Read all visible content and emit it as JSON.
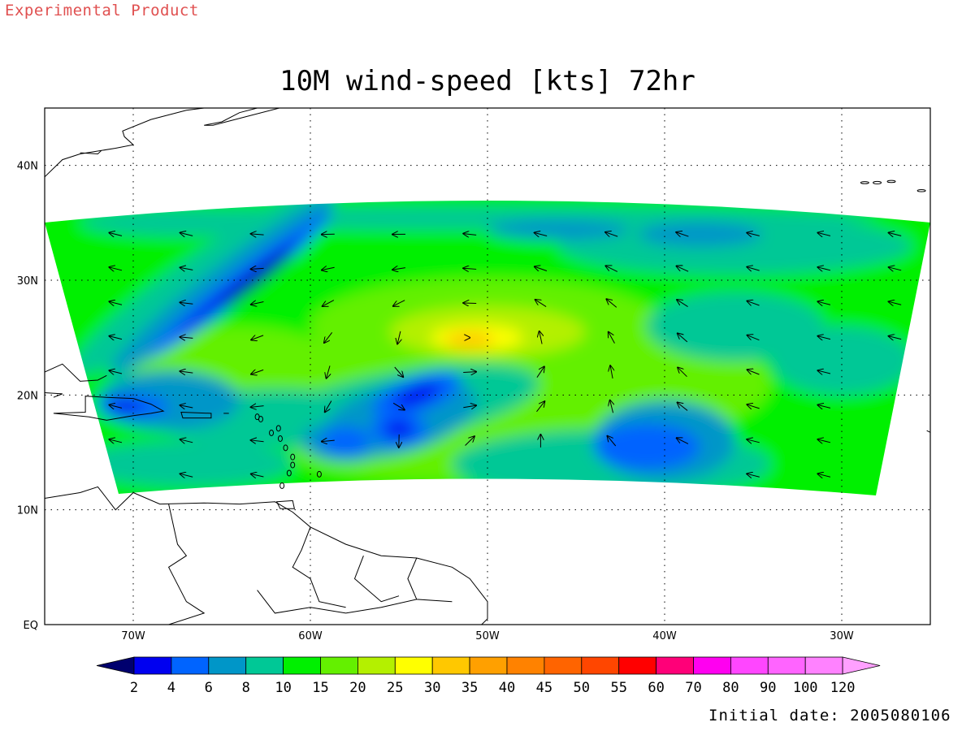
{
  "header": {
    "label": "Experimental Product"
  },
  "title": "10M wind-speed [kts] 72hr",
  "footer": {
    "initial_date": "Initial date: 2005080106"
  },
  "axes": {
    "lon_labels": [
      "70W",
      "60W",
      "50W",
      "40W",
      "30W"
    ],
    "lat_labels": [
      "40N",
      "30N",
      "20N",
      "10N",
      "EQ"
    ]
  },
  "colorbar": {
    "labels": [
      "2",
      "4",
      "6",
      "8",
      "10",
      "15",
      "20",
      "25",
      "30",
      "35",
      "40",
      "45",
      "50",
      "55",
      "60",
      "70",
      "80",
      "90",
      "100",
      "120"
    ],
    "colors": [
      "#00006e",
      "#0000f0",
      "#0064ff",
      "#0096c8",
      "#00c896",
      "#00f000",
      "#64f000",
      "#b4f000",
      "#ffff00",
      "#ffc800",
      "#ffa000",
      "#ff8200",
      "#ff6400",
      "#ff4600",
      "#ff0000",
      "#ff0078",
      "#ff00f0",
      "#ff46ff",
      "#ff64ff",
      "#ff82ff",
      "#ffa0ff"
    ]
  },
  "colors": {
    "land_outline": "#000000",
    "grid": "#000000",
    "header_text": "#e05050"
  },
  "chart_data": {
    "type": "heatmap",
    "title": "10M wind-speed [kts] 72hr",
    "variable": "10M wind-speed",
    "units": "kts",
    "forecast_hour": "72hr",
    "initial_date": "2005080106",
    "x_range_lon": [
      -75,
      -25
    ],
    "y_range_lat": [
      0,
      45
    ],
    "x_ticks": [
      "70W",
      "60W",
      "50W",
      "40W",
      "30W"
    ],
    "y_ticks": [
      "40N",
      "30N",
      "20N",
      "10N",
      "EQ"
    ],
    "grid": true,
    "levels": [
      2,
      4,
      6,
      8,
      10,
      15,
      20,
      25,
      30,
      35,
      40,
      45,
      50,
      55,
      60,
      70,
      80,
      90,
      100,
      120
    ],
    "features": [
      {
        "type": "max",
        "lon": -51,
        "lat": 25,
        "value": 30
      },
      {
        "type": "min",
        "lon": -62,
        "lat": 29,
        "value": 2
      },
      {
        "type": "min",
        "lon": -54,
        "lat": 20,
        "value": 2
      },
      {
        "type": "min",
        "lon": -55,
        "lat": 17,
        "value": 2
      },
      {
        "type": "min",
        "lon": -70,
        "lat": 19,
        "value": 2
      },
      {
        "type": "min",
        "lon": -40,
        "lat": 16,
        "value": 6
      },
      {
        "type": "min",
        "lon": -38,
        "lat": 34,
        "value": 6
      }
    ]
  }
}
